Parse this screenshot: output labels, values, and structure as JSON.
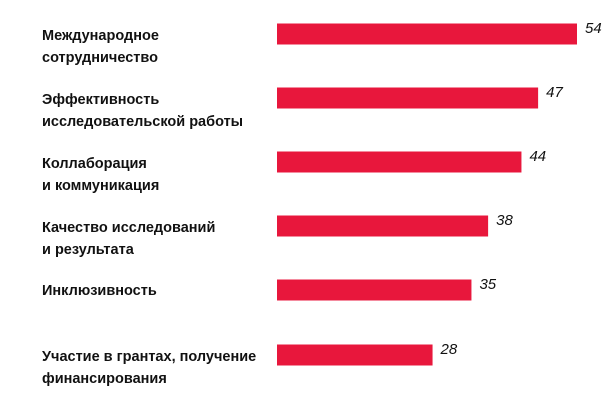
{
  "chart_data": {
    "type": "bar",
    "orientation": "horizontal",
    "categories": [
      [
        "Международное",
        "сотрудничество"
      ],
      [
        "Эффективность",
        "исследовательской работы"
      ],
      [
        "Коллаборация",
        "и коммуникация"
      ],
      [
        "Качество исследований",
        "и результата"
      ],
      [
        "Инклюзивность"
      ],
      [
        "Участие в грантах, получение",
        "финансирования"
      ]
    ],
    "values": [
      54,
      47,
      44,
      38,
      35,
      28
    ],
    "value_labels": [
      "54",
      "47",
      "44",
      "38",
      "35",
      "28"
    ],
    "xlim": [
      0,
      54
    ],
    "grid": false,
    "legend": "none",
    "bar_color": "#e8173c",
    "text_color": "#111111"
  }
}
